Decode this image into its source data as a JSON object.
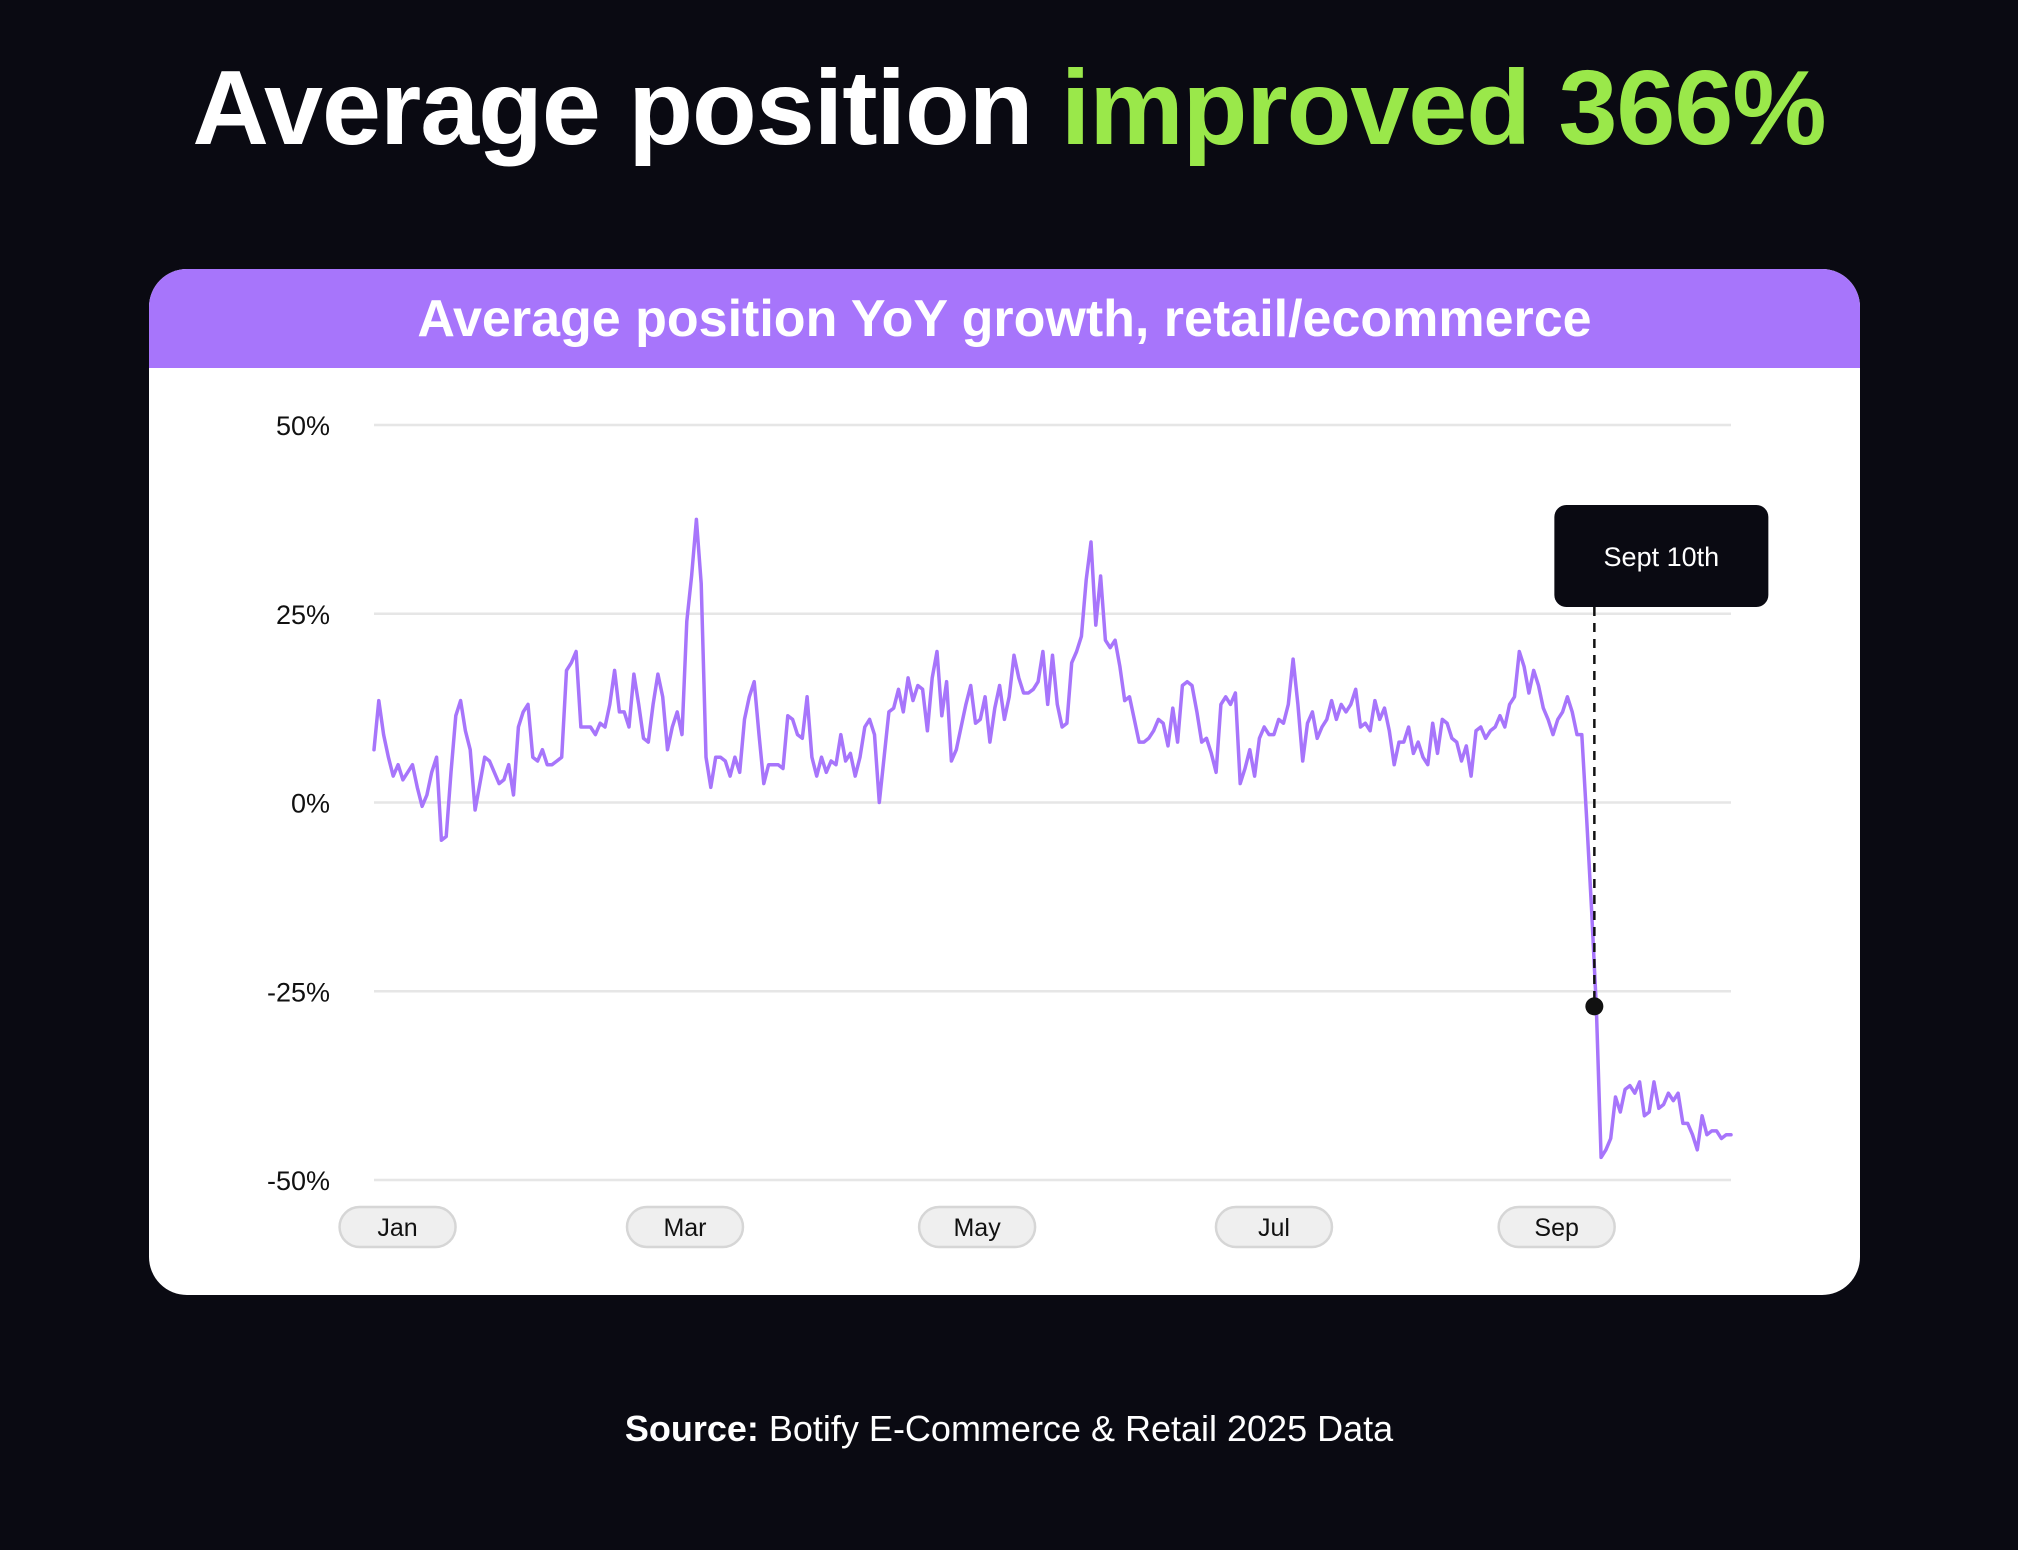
{
  "headline": {
    "lead": "Average position",
    "accent": "improved 366%"
  },
  "colors": {
    "background": "#0a0a12",
    "accent": "#9ae84a",
    "header": "#a775fb",
    "line": "#a775fb",
    "marker": "#111111",
    "grid": "#e6e6e6"
  },
  "chart_data": {
    "type": "line",
    "title": "Average position YoY growth, retail/ecommerce",
    "ylim": [
      -50,
      50
    ],
    "yticks": [
      {
        "value": 50,
        "label": "50%"
      },
      {
        "value": 25,
        "label": "25%"
      },
      {
        "value": 0,
        "label": "0%"
      },
      {
        "value": -25,
        "label": "-25%"
      },
      {
        "value": -50,
        "label": "-50%"
      }
    ],
    "x_domain": [
      0,
      288
    ],
    "xticks": [
      {
        "x": 5,
        "label": "Jan"
      },
      {
        "x": 66,
        "label": "Mar"
      },
      {
        "x": 128,
        "label": "May"
      },
      {
        "x": 191,
        "label": "Jul"
      },
      {
        "x": 251,
        "label": "Sep"
      }
    ],
    "series": [
      {
        "name": "Average position YoY growth",
        "values": [
          7,
          13.5,
          9,
          6,
          3.5,
          5,
          3,
          4,
          5,
          2,
          -0.5,
          1,
          4,
          6,
          -5,
          -4.5,
          4,
          11.5,
          13.5,
          9.5,
          7,
          -1,
          2.5,
          6,
          5.5,
          4,
          2.5,
          3,
          5,
          1,
          10,
          12,
          13,
          6,
          5.5,
          7,
          5,
          5,
          5.5,
          6,
          17.5,
          18.5,
          20,
          10,
          10,
          10,
          9,
          10.5,
          10,
          13,
          17.5,
          12,
          12,
          10,
          17,
          13,
          8.5,
          8,
          13,
          17,
          14,
          7,
          10,
          12,
          9,
          24,
          30,
          37.5,
          29,
          6,
          2,
          6,
          6,
          5.5,
          3.5,
          6,
          4,
          11,
          14,
          16,
          9,
          2.5,
          5,
          5,
          5,
          4.5,
          11.5,
          11,
          9,
          8.5,
          14,
          6,
          3.5,
          6,
          4,
          5.5,
          5,
          9,
          5.5,
          6.5,
          3.5,
          6,
          10,
          11,
          9,
          0,
          6,
          12,
          12.5,
          15,
          12,
          16.5,
          13.5,
          15.5,
          15,
          9.5,
          16.5,
          20,
          11.5,
          16,
          5.5,
          7,
          10,
          13,
          15.5,
          10.5,
          11,
          14,
          8,
          12.5,
          15.5,
          11,
          14,
          19.5,
          16.5,
          14.5,
          14.5,
          15,
          16,
          20,
          13,
          19.5,
          13,
          10,
          10.5,
          18.5,
          20,
          22,
          29.5,
          34.5,
          23.5,
          30,
          21.5,
          20.5,
          21.5,
          18,
          13.5,
          14,
          11,
          8,
          8,
          8.5,
          9.5,
          11,
          10.5,
          7.5,
          12.5,
          8,
          15.5,
          16,
          15.5,
          12,
          8,
          8.5,
          6.5,
          4,
          13,
          14,
          13,
          14.5,
          2.5,
          4.5,
          7,
          3.5,
          8.5,
          10,
          9,
          9,
          11,
          10.5,
          13,
          19,
          13,
          5.5,
          10.5,
          12,
          8.5,
          10,
          11,
          13.5,
          11,
          13,
          12,
          13,
          15,
          10,
          10.5,
          9.5,
          13.5,
          11,
          12.5,
          9.5,
          5,
          8,
          8,
          10,
          6.5,
          8,
          6,
          5,
          10.5,
          6.5,
          11,
          10.5,
          8.5,
          8,
          5.5,
          7.5,
          3.5,
          9.5,
          10,
          8.5,
          9.5,
          10,
          11.5,
          10,
          13,
          14,
          20,
          18,
          14.5,
          17.5,
          15.5,
          12.5,
          11,
          9,
          11,
          12,
          14,
          12,
          9,
          9,
          -2,
          -14,
          -27,
          -47,
          -46,
          -44.5,
          -39,
          -41,
          -38,
          -37.5,
          -38.5,
          -37,
          -41.5,
          -41,
          -37,
          -40.5,
          -40,
          -38.5,
          -39.5,
          -38.5,
          -42.5,
          -42.5,
          -44,
          -46,
          -41.5,
          -44,
          -43.5,
          -43.5,
          -44.5,
          -44,
          -44
        ]
      }
    ],
    "annotation": {
      "label": "Sept 10th",
      "x": 259,
      "value": -27
    }
  },
  "source": {
    "label": "Source:",
    "text": "Botify E-Commerce & Retail 2025 Data"
  }
}
